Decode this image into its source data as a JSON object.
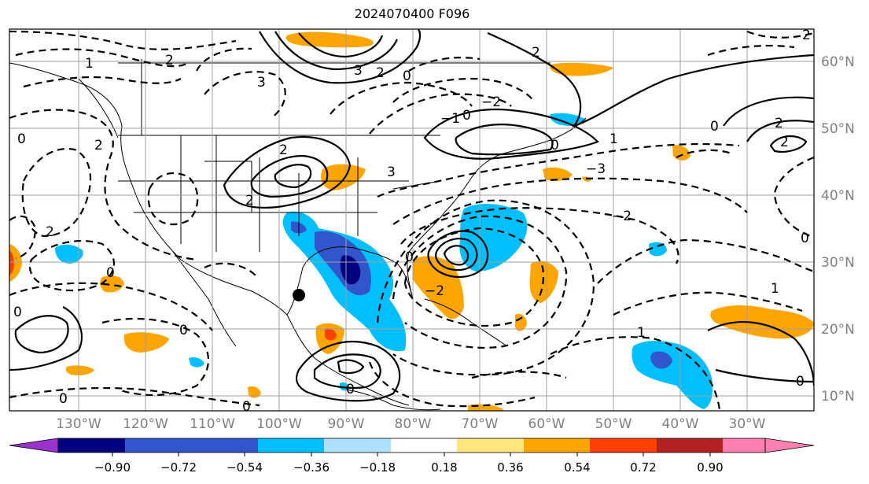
{
  "title": "2024070400 F096",
  "map": {
    "lon_labels": [
      "130°W",
      "120°W",
      "110°W",
      "100°W",
      "90°W",
      "80°W",
      "70°W",
      "60°W",
      "50°W",
      "40°W",
      "30°W"
    ],
    "lat_labels": [
      "60°N",
      "50°N",
      "40°N",
      "30°N",
      "20°N",
      "10°N"
    ],
    "label_color": "#808080",
    "grid_color": "#a0a0a0"
  },
  "colorbar": {
    "tick_labels": [
      "−0.90",
      "−0.72",
      "−0.54",
      "−0.36",
      "−0.18",
      "0.18",
      "0.36",
      "0.54",
      "0.72",
      "0.90"
    ],
    "colors": [
      "#9933cc",
      "#000080",
      "#3355cc",
      "#00bfff",
      "#b0e0ff",
      "#ffffff",
      "#ffe680",
      "#ffa500",
      "#ff4000",
      "#b22222",
      "#ff80b0"
    ]
  },
  "contour_labels": [
    "0",
    "1",
    "2",
    "3",
    "−1",
    "−2",
    "−3"
  ],
  "marker": "black-dot"
}
